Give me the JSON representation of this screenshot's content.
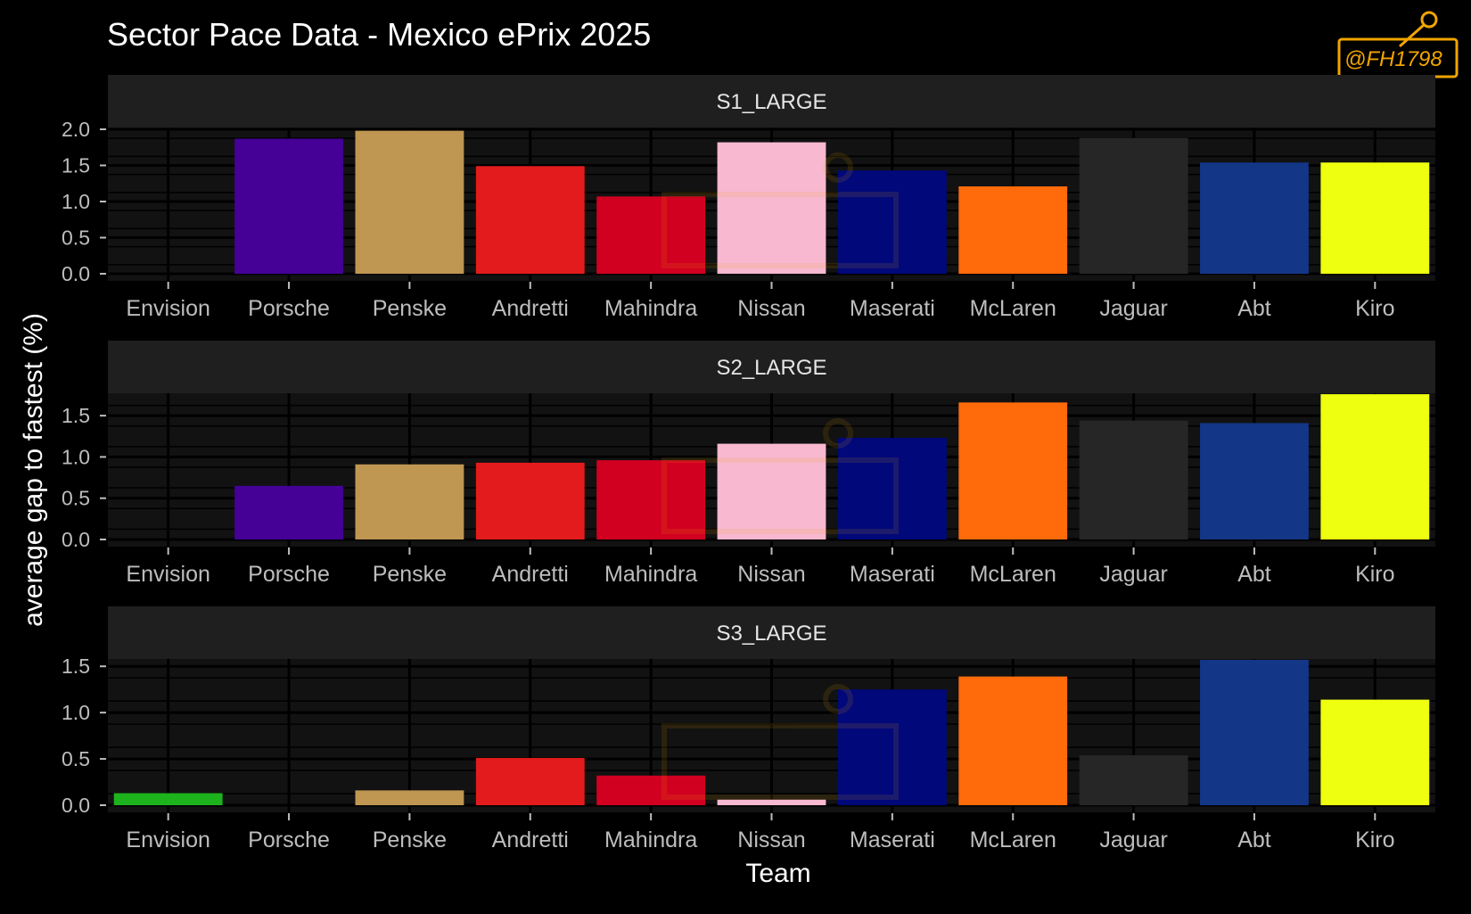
{
  "chart_data": {
    "type": "bar",
    "title": "Sector Pace Data - Mexico ePrix 2025",
    "xlabel": "Team",
    "ylabel": "average gap to fastest (%)",
    "categories": [
      "Envision",
      "Porsche",
      "Penske",
      "Andretti",
      "Mahindra",
      "Nissan",
      "Maserati",
      "McLaren",
      "Jaguar",
      "Abt",
      "Kiro"
    ],
    "team_colors": {
      "Envision": "#1db31d",
      "Porsche": "#450096",
      "Penske": "#bf9652",
      "Andretti": "#e31b1c",
      "Mahindra": "#d10020",
      "Nissan": "#f7b8d0",
      "Maserati": "#00087a",
      "McLaren": "#ff6a0a",
      "Jaguar": "#262626",
      "Abt": "#133687",
      "Kiro": "#eeff10"
    },
    "panels": [
      {
        "name": "S1_LARGE",
        "ylim": [
          0,
          2.0
        ],
        "yticks": [
          "0.0",
          "0.5",
          "1.0",
          "1.5",
          "2.0"
        ],
        "values": [
          0.0,
          1.87,
          1.98,
          1.49,
          1.07,
          1.82,
          1.43,
          1.21,
          1.88,
          1.54,
          1.54
        ]
      },
      {
        "name": "S2_LARGE",
        "ylim": [
          0,
          1.75
        ],
        "yticks": [
          "0.0",
          "0.5",
          "1.0",
          "1.5"
        ],
        "values": [
          0.0,
          0.65,
          0.91,
          0.93,
          0.96,
          1.16,
          1.23,
          1.66,
          1.44,
          1.41,
          1.76
        ]
      },
      {
        "name": "S3_LARGE",
        "ylim": [
          0,
          1.56
        ],
        "yticks": [
          "0.0",
          "0.5",
          "1.0",
          "1.5"
        ],
        "values": [
          0.13,
          0.0,
          0.16,
          0.51,
          0.32,
          0.06,
          1.25,
          1.39,
          0.54,
          1.57,
          1.14
        ]
      }
    ],
    "grid": true,
    "legend": "none"
  },
  "watermark": "@FH1798"
}
